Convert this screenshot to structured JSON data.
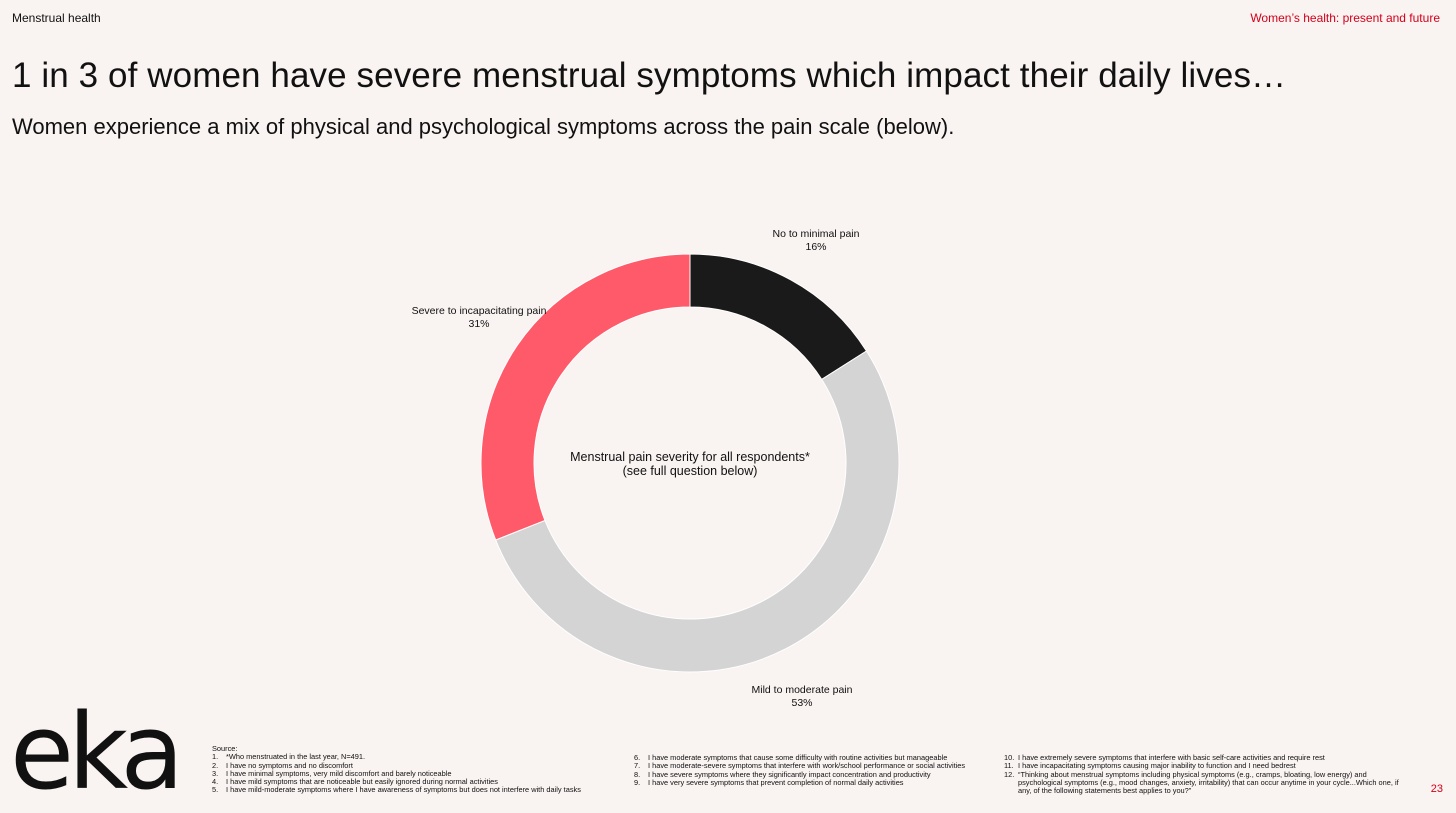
{
  "header": {
    "section": "Menstrual health",
    "deck_title": "Women’s health: present and future"
  },
  "headline": "1 in 3 of women have severe menstrual symptoms which impact their daily lives…",
  "subhead": "Women experience a mix of physical and psychological symptoms across the pain scale (below).",
  "chart_data": {
    "type": "pie",
    "variant": "donut",
    "center_title": "Menstrual pain severity for all respondents*",
    "center_subtitle": "(see full question below)",
    "slices": [
      {
        "label": "No to minimal pain",
        "value": 16,
        "value_label": "16%",
        "color": "#1a1a1a"
      },
      {
        "label": "Mild to moderate pain",
        "value": 53,
        "value_label": "53%",
        "color": "#d4d4d4"
      },
      {
        "label": "Severe to incapacitating pain",
        "value": 31,
        "value_label": "31%",
        "color": "#ff5a6a"
      }
    ]
  },
  "logo": {
    "text": "eka"
  },
  "source": {
    "heading": "Source:",
    "col1": [
      {
        "num": "1.",
        "text": "*Who menstruated in the last year, N=491."
      },
      {
        "num": "2.",
        "text": "I have no symptoms and no discomfort"
      },
      {
        "num": "3.",
        "text": "I have minimal symptoms, very mild discomfort and barely noticeable"
      },
      {
        "num": "4.",
        "text": "I have mild symptoms that are noticeable but easily ignored during normal activities"
      },
      {
        "num": "5.",
        "text": "I have mild-moderate symptoms where I have awareness of symptoms but does not interfere with daily tasks"
      }
    ],
    "col2": [
      {
        "num": "6.",
        "text": "I have moderate symptoms that cause some difficulty with routine activities but manageable"
      },
      {
        "num": "7.",
        "text": "I have moderate-severe symptoms that interfere with work/school performance or social activities"
      },
      {
        "num": "8.",
        "text": "I have severe symptoms where they significantly impact concentration and productivity"
      },
      {
        "num": "9.",
        "text": "I have very severe symptoms that prevent completion of normal daily activities"
      }
    ],
    "col3": [
      {
        "num": "10.",
        "text": "I have extremely severe symptoms that interfere with basic self-care activities and require rest"
      },
      {
        "num": "11.",
        "text": "I have incapacitating symptoms causing major inability to function and I need bedrest"
      },
      {
        "num": "12.",
        "text": "“Thinking about menstrual symptoms including physical symptoms (e.g., cramps, bloating, low energy) and"
      },
      {
        "num": "",
        "text": "psychological symptoms (e.g., mood changes, anxiety, irritability) that can occur anytime in your cycle...Which one, if"
      },
      {
        "num": "",
        "text": "any, of the following statements best applies to you?”"
      }
    ]
  },
  "page_number": "23"
}
